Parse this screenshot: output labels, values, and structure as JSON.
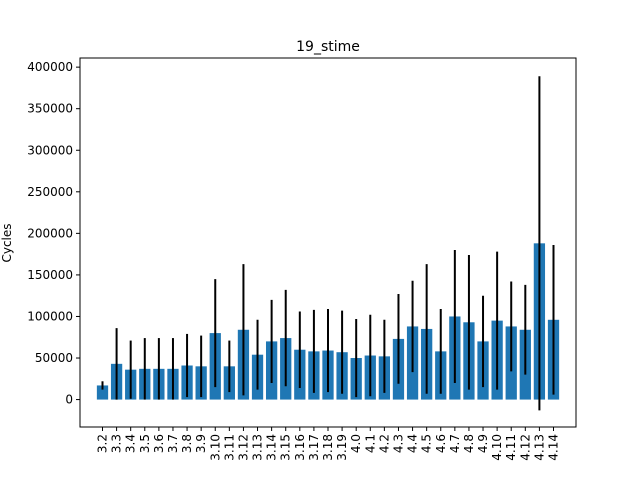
{
  "chart_data": {
    "type": "bar",
    "title": "19_stime",
    "xlabel": "",
    "ylabel": "Cycles",
    "ylim": [
      -33000,
      411000
    ],
    "yticks": [
      0,
      50000,
      100000,
      150000,
      200000,
      250000,
      300000,
      350000,
      400000
    ],
    "ytick_labels": [
      "0",
      "50000",
      "100000",
      "150000",
      "200000",
      "250000",
      "300000",
      "350000",
      "400000"
    ],
    "grid": false,
    "bar_color": "#1f77b4",
    "error_color": "#000000",
    "categories": [
      "3.2",
      "3.3",
      "3.4",
      "3.5",
      "3.6",
      "3.7",
      "3.8",
      "3.9",
      "3.10",
      "3.11",
      "3.12",
      "3.13",
      "3.14",
      "3.15",
      "3.16",
      "3.17",
      "3.18",
      "3.19",
      "4.0",
      "4.1",
      "4.2",
      "4.3",
      "4.4",
      "4.5",
      "4.6",
      "4.7",
      "4.8",
      "4.9",
      "4.10",
      "4.11",
      "4.12",
      "4.13",
      "4.14"
    ],
    "values": [
      17000,
      43000,
      36000,
      37000,
      37000,
      37000,
      41000,
      40000,
      80000,
      40000,
      84000,
      54000,
      70000,
      74000,
      60000,
      58000,
      59000,
      57000,
      50000,
      53000,
      52000,
      73000,
      88000,
      85000,
      58000,
      100000,
      93000,
      70000,
      95000,
      88000,
      84000,
      188000,
      96000
    ],
    "errors": [
      5000,
      43000,
      35000,
      37000,
      37000,
      37000,
      38000,
      37000,
      65000,
      31000,
      79000,
      42000,
      50000,
      58000,
      46000,
      50000,
      50000,
      50000,
      47000,
      49000,
      44000,
      54000,
      55000,
      78000,
      51000,
      80000,
      81000,
      55000,
      83000,
      54000,
      54000,
      201000,
      90000
    ]
  }
}
